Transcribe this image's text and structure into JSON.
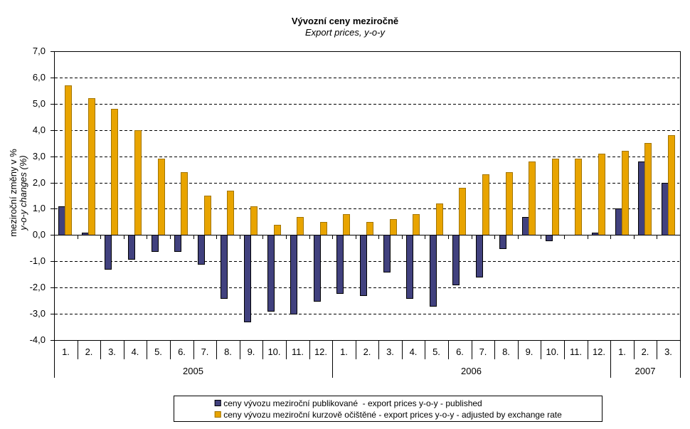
{
  "title": "Vývozní ceny meziročně",
  "subtitle": "Export prices, y-o-y",
  "y_axis": {
    "title_line1": "meziroční změny v %",
    "title_line2": "y-o-y changes (%)",
    "tick_labels": [
      "7,0",
      "6,0",
      "5,0",
      "4,0",
      "3,0",
      "2,0",
      "1,0",
      "0,0",
      "-1,0",
      "-2,0",
      "-3,0",
      "-4,0"
    ]
  },
  "legend": {
    "items": [
      {
        "label": "ceny vývozu meziroční publikované  - export prices y-o-y - published",
        "color": "#41417E"
      },
      {
        "label": "ceny vývozu meziroční kurzově očištěné - export prices y-o-y - adjusted by exchange rate",
        "color": "#E8A400"
      }
    ]
  },
  "colors": {
    "published_bar": "#41417E",
    "adjusted_bar": "#E8A400",
    "bar_border": "#000000",
    "axis": "#000000",
    "text": "#000000",
    "background": "#FFFFFF"
  },
  "chart_data": {
    "type": "bar",
    "title": "Vývozní ceny meziročně",
    "subtitle": "Export prices, y-o-y",
    "ylabel": "meziroční změny v % / y-o-y changes (%)",
    "ylabel_line1": "meziroční změny v %",
    "ylabel_line2": "y-o-y changes (%)",
    "ylim": [
      -4,
      7
    ],
    "ytick_step": 1,
    "grid": "horizontal-dashed",
    "legend_position": "bottom",
    "month_labels": [
      "1.",
      "2.",
      "3.",
      "4.",
      "5.",
      "6.",
      "7.",
      "8.",
      "9.",
      "10.",
      "11.",
      "12.",
      "1.",
      "2.",
      "3.",
      "4.",
      "5.",
      "6.",
      "7.",
      "8.",
      "9.",
      "10.",
      "11.",
      "12.",
      "1.",
      "2.",
      "3."
    ],
    "year_groups": [
      {
        "label": "2005",
        "months": 12
      },
      {
        "label": "2006",
        "months": 12
      },
      {
        "label": "2007",
        "months": 3
      }
    ],
    "categories": [
      "2005-1",
      "2005-2",
      "2005-3",
      "2005-4",
      "2005-5",
      "2005-6",
      "2005-7",
      "2005-8",
      "2005-9",
      "2005-10",
      "2005-11",
      "2005-12",
      "2006-1",
      "2006-2",
      "2006-3",
      "2006-4",
      "2006-5",
      "2006-6",
      "2006-7",
      "2006-8",
      "2006-9",
      "2006-10",
      "2006-11",
      "2006-12",
      "2007-1",
      "2007-2",
      "2007-3"
    ],
    "series": [
      {
        "name": "ceny vývozu meziroční publikované  - export prices y-o-y - published",
        "color": "#41417E",
        "border": "#000000",
        "values": [
          1.1,
          0.1,
          -1.3,
          -0.9,
          -0.6,
          -0.6,
          -1.1,
          -2.4,
          -3.3,
          -2.9,
          -3.0,
          -2.5,
          -2.2,
          -2.3,
          -1.4,
          -2.4,
          -2.7,
          -1.9,
          -1.6,
          -0.5,
          0.7,
          -0.2,
          0.0,
          0.1,
          1.0,
          2.8,
          2.0
        ]
      },
      {
        "name": "ceny vývozu meziroční kurzově očištěné - export prices y-o-y - adjusted by exchange rate",
        "color": "#E8A400",
        "border": "#A27500",
        "values": [
          5.7,
          5.2,
          4.8,
          4.0,
          2.9,
          2.4,
          1.5,
          1.7,
          1.1,
          0.4,
          0.7,
          0.5,
          0.8,
          0.5,
          0.6,
          0.8,
          1.2,
          1.8,
          2.3,
          2.4,
          2.8,
          2.9,
          2.9,
          3.1,
          3.2,
          3.5,
          3.8
        ]
      }
    ]
  }
}
